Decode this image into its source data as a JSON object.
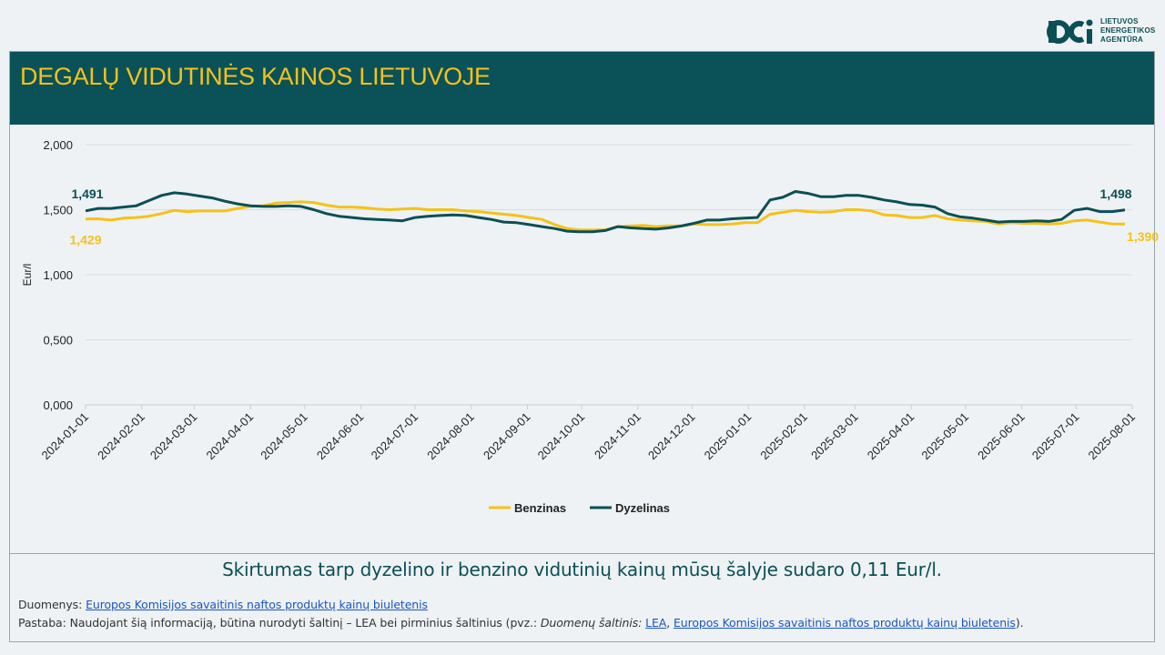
{
  "logo": {
    "lines": [
      "LIETUVOS",
      "ENERGETIKOS",
      "AGENTŪRA"
    ]
  },
  "title": "DEGALŲ VIDUTINĖS KAINOS LIETUVOJE",
  "colors": {
    "header_bg": "#0b5158",
    "title": "#f3c21a",
    "benzinas": "#f5c218",
    "dyzelinas": "#0c4f55"
  },
  "chart_data": {
    "type": "line",
    "ylabel": "Eur/l",
    "ylim": [
      0,
      2
    ],
    "yticks": [
      "0,000",
      "0,500",
      "1,000",
      "1,500",
      "2,000"
    ],
    "xticks": [
      "2024-01-01",
      "2024-02-01",
      "2024-03-01",
      "2024-04-01",
      "2024-05-01",
      "2024-06-01",
      "2024-07-01",
      "2024-08-01",
      "2024-09-01",
      "2024-10-01",
      "2024-11-01",
      "2024-12-01",
      "2025-01-01",
      "2025-02-01",
      "2025-03-01",
      "2025-04-01",
      "2025-05-01",
      "2025-06-01",
      "2025-07-01",
      "2025-08-01"
    ],
    "grid": true,
    "legend": "bottom",
    "x": [
      "2024-01-01",
      "2024-01-08",
      "2024-01-15",
      "2024-01-22",
      "2024-01-29",
      "2024-02-05",
      "2024-02-12",
      "2024-02-19",
      "2024-02-26",
      "2024-03-04",
      "2024-03-11",
      "2024-03-18",
      "2024-03-25",
      "2024-04-01",
      "2024-04-08",
      "2024-04-15",
      "2024-04-22",
      "2024-04-29",
      "2024-05-06",
      "2024-05-13",
      "2024-05-20",
      "2024-05-27",
      "2024-06-03",
      "2024-06-10",
      "2024-06-17",
      "2024-06-24",
      "2024-07-01",
      "2024-07-08",
      "2024-07-15",
      "2024-07-22",
      "2024-07-29",
      "2024-08-05",
      "2024-08-12",
      "2024-08-19",
      "2024-08-26",
      "2024-09-02",
      "2024-09-09",
      "2024-09-16",
      "2024-09-23",
      "2024-09-30",
      "2024-10-07",
      "2024-10-14",
      "2024-10-21",
      "2024-10-28",
      "2024-11-04",
      "2024-11-11",
      "2024-11-18",
      "2024-11-25",
      "2024-12-02",
      "2024-12-09",
      "2024-12-16",
      "2024-12-23",
      "2024-12-30",
      "2025-01-06",
      "2025-01-13",
      "2025-01-20",
      "2025-01-27",
      "2025-02-03",
      "2025-02-10",
      "2025-02-17",
      "2025-02-24",
      "2025-03-03",
      "2025-03-10",
      "2025-03-17",
      "2025-03-24",
      "2025-03-31",
      "2025-04-07",
      "2025-04-14",
      "2025-04-21",
      "2025-04-28",
      "2025-05-05",
      "2025-05-12",
      "2025-05-19",
      "2025-05-26",
      "2025-06-02",
      "2025-06-09",
      "2025-06-16",
      "2025-06-23",
      "2025-06-30",
      "2025-07-07",
      "2025-07-14",
      "2025-07-21",
      "2025-07-28"
    ],
    "series": [
      {
        "name": "Benzinas",
        "color": "#f5c218",
        "first_label": "1,429",
        "last_label": "1,390",
        "values": [
          1.429,
          1.43,
          1.42,
          1.435,
          1.44,
          1.45,
          1.47,
          1.495,
          1.485,
          1.49,
          1.49,
          1.49,
          1.51,
          1.525,
          1.53,
          1.55,
          1.555,
          1.56,
          1.555,
          1.535,
          1.52,
          1.52,
          1.515,
          1.505,
          1.5,
          1.505,
          1.51,
          1.5,
          1.5,
          1.5,
          1.49,
          1.485,
          1.475,
          1.465,
          1.455,
          1.44,
          1.425,
          1.385,
          1.355,
          1.345,
          1.345,
          1.345,
          1.37,
          1.375,
          1.38,
          1.37,
          1.375,
          1.375,
          1.39,
          1.385,
          1.385,
          1.39,
          1.4,
          1.4,
          1.465,
          1.48,
          1.495,
          1.485,
          1.48,
          1.485,
          1.5,
          1.5,
          1.49,
          1.46,
          1.455,
          1.44,
          1.44,
          1.455,
          1.43,
          1.42,
          1.415,
          1.41,
          1.39,
          1.4,
          1.395,
          1.395,
          1.39,
          1.395,
          1.415,
          1.42,
          1.405,
          1.39,
          1.39
        ]
      },
      {
        "name": "Dyzelinas",
        "color": "#0c4f55",
        "first_label": "1,491",
        "last_label": "1,498",
        "values": [
          1.491,
          1.51,
          1.51,
          1.52,
          1.53,
          1.57,
          1.61,
          1.63,
          1.62,
          1.605,
          1.59,
          1.565,
          1.545,
          1.53,
          1.525,
          1.525,
          1.53,
          1.525,
          1.5,
          1.47,
          1.45,
          1.44,
          1.43,
          1.425,
          1.42,
          1.415,
          1.44,
          1.45,
          1.455,
          1.46,
          1.455,
          1.44,
          1.425,
          1.405,
          1.4,
          1.385,
          1.37,
          1.355,
          1.335,
          1.33,
          1.33,
          1.34,
          1.37,
          1.36,
          1.355,
          1.35,
          1.36,
          1.375,
          1.395,
          1.42,
          1.42,
          1.43,
          1.435,
          1.44,
          1.575,
          1.595,
          1.64,
          1.625,
          1.6,
          1.6,
          1.61,
          1.61,
          1.595,
          1.575,
          1.56,
          1.54,
          1.535,
          1.52,
          1.47,
          1.445,
          1.435,
          1.42,
          1.405,
          1.41,
          1.41,
          1.415,
          1.41,
          1.425,
          1.495,
          1.51,
          1.485,
          1.485,
          1.498
        ]
      }
    ]
  },
  "summary": "Skirtumas tarp dyzelino ir benzino vidutinių kainų mūsų šalyje sudaro 0,11 Eur/l.",
  "sources": {
    "data_prefix": "Duomenys: ",
    "data_link": "Europos Komisijos savaitinis naftos produktų kainų biuletenis",
    "note_prefix": "Pastaba: Naudojant šią informaciją, būtina nurodyti šaltinį – LEA bei pirminius šaltinius (pvz.: ",
    "note_italic": "Duomenų šaltinis: ",
    "note_link1": "LEA",
    "note_sep": ", ",
    "note_link2": "Europos Komisijos savaitinis naftos produktų kainų biuletenis",
    "note_suffix": ")."
  }
}
